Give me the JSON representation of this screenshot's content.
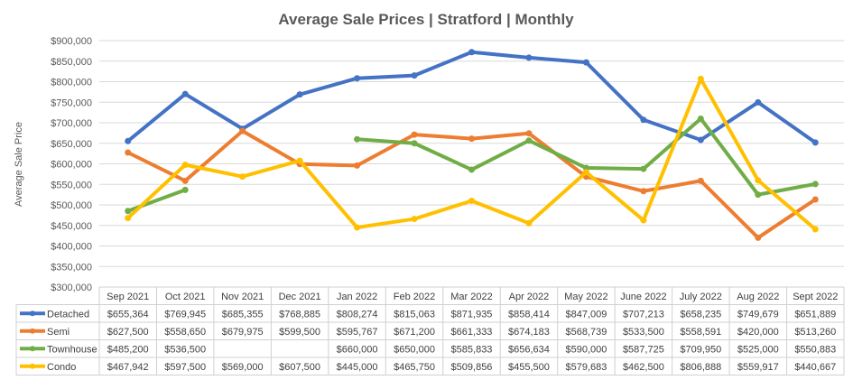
{
  "chart_data": {
    "type": "line",
    "title": "Average Sale Prices | Stratford |  Monthly",
    "xlabel": "",
    "ylabel": "Average Sale Price",
    "ylim": [
      300000,
      900000
    ],
    "y_ticks": [
      300000,
      350000,
      400000,
      450000,
      500000,
      550000,
      600000,
      650000,
      700000,
      750000,
      800000,
      850000,
      900000
    ],
    "y_tick_labels": [
      "$300,000",
      "$350,000",
      "$400,000",
      "$450,000",
      "$500,000",
      "$550,000",
      "$600,000",
      "$650,000",
      "$700,000",
      "$750,000",
      "$800,000",
      "$850,000",
      "$900,000"
    ],
    "grid": true,
    "legend": "data-table-left",
    "categories": [
      "Sep 2021",
      "Oct 2021",
      "Nov 2021",
      "Dec 2021",
      "Jan 2022",
      "Feb 2022",
      "Mar 2022",
      "Apr 2022",
      "May 2022",
      "June 2022",
      "July 2022",
      "Aug 2022",
      "Sept 2022"
    ],
    "series": [
      {
        "name": "Detached",
        "color": "#4472C4",
        "values": [
          655364,
          769945,
          685355,
          768885,
          808274,
          815063,
          871935,
          858414,
          847009,
          707213,
          658235,
          749679,
          651889
        ],
        "labels": [
          "$655,364",
          "$769,945",
          "$685,355",
          "$768,885",
          "$808,274",
          "$815,063",
          "$871,935",
          "$858,414",
          "$847,009",
          "$707,213",
          "$658,235",
          "$749,679",
          "$651,889"
        ]
      },
      {
        "name": "Semi",
        "color": "#ED7D31",
        "values": [
          627500,
          558650,
          679975,
          599500,
          595767,
          671200,
          661333,
          674183,
          568739,
          533500,
          558591,
          420000,
          513260
        ],
        "labels": [
          "$627,500",
          "$558,650",
          "$679,975",
          "$599,500",
          "$595,767",
          "$671,200",
          "$661,333",
          "$674,183",
          "$568,739",
          "$533,500",
          "$558,591",
          "$420,000",
          "$513,260"
        ]
      },
      {
        "name": "Townhouse",
        "color": "#70AD47",
        "values": [
          485200,
          536500,
          null,
          null,
          660000,
          650000,
          585833,
          656634,
          590000,
          587725,
          709950,
          525000,
          550883
        ],
        "labels": [
          "$485,200",
          "$536,500",
          "",
          "",
          "$660,000",
          "$650,000",
          "$585,833",
          "$656,634",
          "$590,000",
          "$587,725",
          "$709,950",
          "$525,000",
          "$550,883"
        ]
      },
      {
        "name": "Condo",
        "color": "#FFC000",
        "values": [
          467942,
          597500,
          569000,
          607500,
          445000,
          465750,
          509856,
          455500,
          579683,
          462500,
          806888,
          559917,
          440667
        ],
        "labels": [
          "$467,942",
          "$597,500",
          "$569,000",
          "$607,500",
          "$445,000",
          "$465,750",
          "$509,856",
          "$455,500",
          "$579,683",
          "$462,500",
          "$806,888",
          "$559,917",
          "$440,667"
        ]
      }
    ]
  }
}
